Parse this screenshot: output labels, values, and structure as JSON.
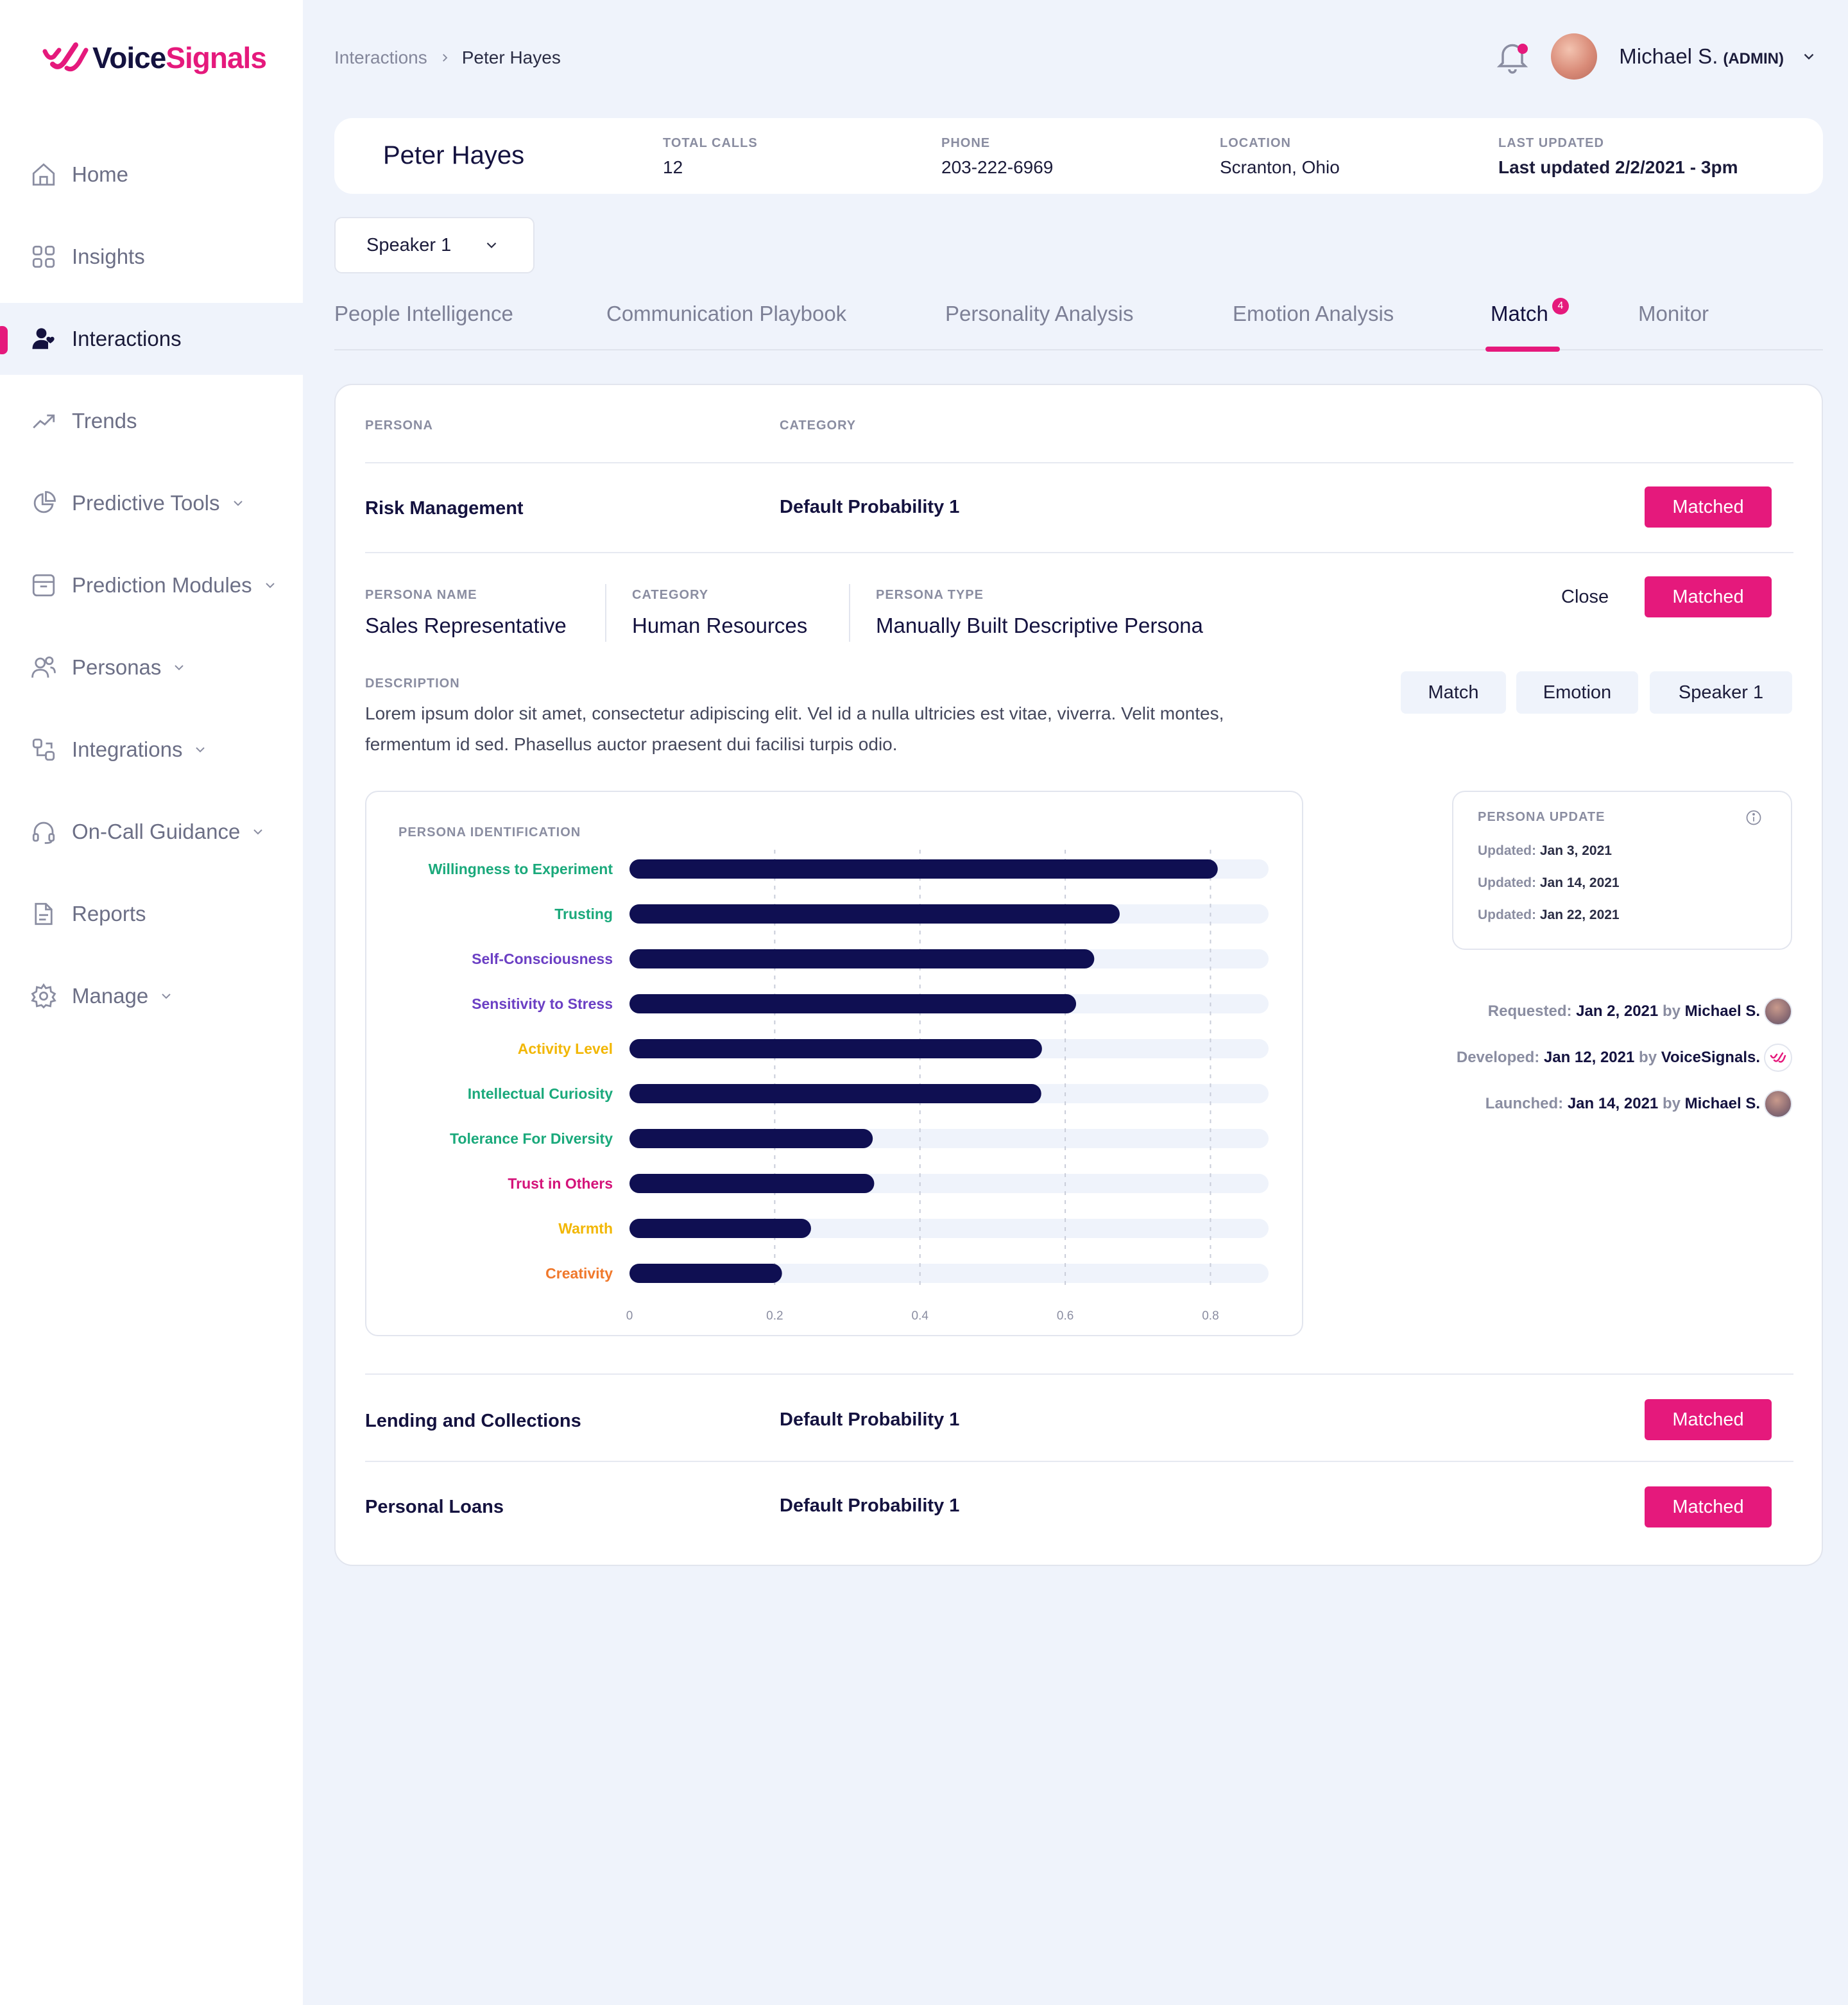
{
  "brand": {
    "voice": "Voice",
    "signals": "Signals",
    "accent": "#e5197c",
    "navy": "#14123f"
  },
  "sidebar": {
    "items": [
      {
        "label": "Home",
        "icon": "home-icon",
        "chevron": false
      },
      {
        "label": "Insights",
        "icon": "grid-icon",
        "chevron": false
      },
      {
        "label": "Interactions",
        "icon": "user-heart-icon",
        "chevron": false,
        "active": true
      },
      {
        "label": "Trends",
        "icon": "trend-up-icon",
        "chevron": false
      },
      {
        "label": "Predictive Tools",
        "icon": "pie-chart-icon",
        "chevron": true
      },
      {
        "label": "Prediction Modules",
        "icon": "archive-icon",
        "chevron": true
      },
      {
        "label": "Personas",
        "icon": "users-icon",
        "chevron": true
      },
      {
        "label": "Integrations",
        "icon": "integrations-icon",
        "chevron": true
      },
      {
        "label": "On-Call Guidance",
        "icon": "headset-icon",
        "chevron": true
      },
      {
        "label": "Reports",
        "icon": "document-icon",
        "chevron": false
      },
      {
        "label": "Manage",
        "icon": "gear-icon",
        "chevron": true
      }
    ]
  },
  "header": {
    "breadcrumb": {
      "parent": "Interactions",
      "current": "Peter Hayes"
    },
    "user": {
      "name": "Michael S.",
      "role": "(ADMIN)"
    }
  },
  "profile": {
    "name": "Peter Hayes",
    "stats": [
      {
        "label": "TOTAL CALLS",
        "value": "12"
      },
      {
        "label": "PHONE",
        "value": "203-222-6969"
      },
      {
        "label": "LOCATION",
        "value": "Scranton, Ohio"
      },
      {
        "label": "LAST UPDATED",
        "value": "Last updated 2/2/2021 - 3pm"
      }
    ]
  },
  "speaker_select": {
    "value": "Speaker 1"
  },
  "tabs": [
    {
      "label": "People Intelligence"
    },
    {
      "label": "Communication Playbook"
    },
    {
      "label": "Personality Analysis"
    },
    {
      "label": "Emotion Analysis"
    },
    {
      "label": "Match",
      "active": true,
      "badge": "4"
    },
    {
      "label": "Monitor"
    }
  ],
  "table": {
    "headers": {
      "persona": "PERSONA",
      "category": "CATEGORY"
    },
    "rows": [
      {
        "persona": "Risk Management",
        "category": "Default Probability 1",
        "status": "Matched"
      },
      {
        "persona": "Lending and Collections",
        "category": "Default Probability 1",
        "status": "Matched"
      },
      {
        "persona": "Personal Loans",
        "category": "Default Probability 1",
        "status": "Matched"
      }
    ]
  },
  "detail": {
    "persona_name_label": "PERSONA NAME",
    "persona_name": "Sales Representative",
    "category_label": "CATEGORY",
    "category": "Human Resources",
    "persona_type_label": "PERSONA TYPE",
    "persona_type": "Manually Built Descriptive Persona",
    "close_label": "Close",
    "status": "Matched",
    "description_label": "DESCRIPTION",
    "description": "Lorem ipsum dolor sit amet, consectetur adipiscing elit. Vel id a nulla ultricies est vitae, viverra. Velit montes, fermentum id sed. Phasellus auctor praesent dui facilisi turpis odio.",
    "chips": [
      "Match",
      "Emotion",
      "Speaker 1"
    ],
    "chart_title": "PERSONA IDENTIFICATION",
    "update": {
      "title": "PERSONA UPDATE",
      "prefix": "Updated:",
      "dates": [
        "Jan 3, 2021",
        "Jan 14, 2021",
        "Jan 22, 2021"
      ]
    },
    "timeline": [
      {
        "label": "Requested:",
        "date": "Jan 2, 2021",
        "by": "by",
        "who": "Michael S.",
        "avatar": "user-avatar"
      },
      {
        "label": "Developed:",
        "date": "Jan 12, 2021",
        "by": "by",
        "who": "VoiceSignals.",
        "avatar": "voicesignals-logo-icon"
      },
      {
        "label": "Launched:",
        "date": "Jan 14, 2021",
        "by": "by",
        "who": "Michael S.",
        "avatar": "user-avatar"
      }
    ]
  },
  "chart_data": {
    "type": "bar",
    "orientation": "horizontal",
    "title": "PERSONA IDENTIFICATION",
    "categories": [
      "Willingness to Experiment",
      "Trusting",
      "Self-Consciousness",
      "Sensitivity to Stress",
      "Activity Level",
      "Intellectual Curiosity",
      "Tolerance For Diversity",
      "Trust in Others",
      "Warmth",
      "Creativity"
    ],
    "values": [
      0.81,
      0.675,
      0.64,
      0.615,
      0.568,
      0.567,
      0.335,
      0.337,
      0.25,
      0.21
    ],
    "label_colors": [
      "#1aa97b",
      "#1aa97b",
      "#6b3fc4",
      "#6b3fc4",
      "#f2b705",
      "#1aa97b",
      "#1aa97b",
      "#d4137a",
      "#f2b705",
      "#f0782b"
    ],
    "bar_color": "#0f0f52",
    "track_color": "#eff3fb",
    "xticks": [
      0,
      0.2,
      0.4,
      0.6,
      0.8
    ],
    "tick_labels": [
      "0",
      "0.2",
      "0.4",
      "0.6",
      "0.8"
    ],
    "xlim": [
      0,
      0.88
    ],
    "grid": true,
    "grid_style": "dashed"
  }
}
